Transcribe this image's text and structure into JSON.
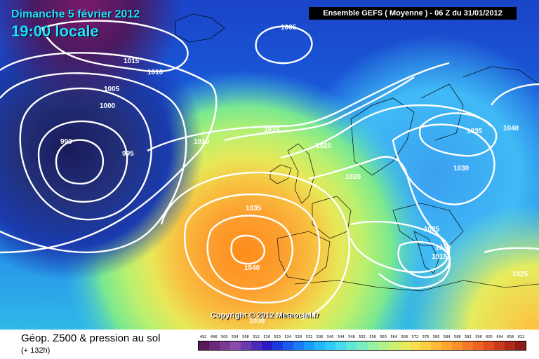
{
  "header": {
    "date": "Dimanche 5 février 2012",
    "time": "19:00 locale",
    "run": "Ensemble GEFS ( Moyenne )  -  06 Z du 31/01/2012"
  },
  "copyright": "Copyright © 2012 Meteociel.fr",
  "footer": {
    "title": "Géop. Z500 & pression au sol",
    "subtitle": "(+ 132h)"
  },
  "isobar_labels": [
    "1005",
    "1015",
    "1010",
    "1005",
    "1000",
    "990",
    "995",
    "1010",
    "1015",
    "1020",
    "1025",
    "1035",
    "1040",
    "1030",
    "1035",
    "1040",
    "1025",
    "1020",
    "1015",
    "1025",
    "1030"
  ],
  "scale": {
    "labels": [
      "492",
      "496",
      "500",
      "504",
      "508",
      "512",
      "516",
      "520",
      "524",
      "528",
      "532",
      "536",
      "540",
      "544",
      "548",
      "552",
      "556",
      "560",
      "564",
      "568",
      "572",
      "576",
      "580",
      "584",
      "588",
      "592",
      "596",
      "600",
      "604",
      "608",
      "612"
    ],
    "colors": [
      "#5a1a5a",
      "#6a2a78",
      "#7a3a92",
      "#8a4aac",
      "#6a3ab0",
      "#4a2ab8",
      "#2a1ac8",
      "#1a3adc",
      "#1a5aee",
      "#1a7afa",
      "#1a9afa",
      "#20b6fa",
      "#30caf8",
      "#46daee",
      "#5ee6d8",
      "#7aeec0",
      "#96f2a4",
      "#b2f28a",
      "#cef072",
      "#e6ec5e",
      "#f6e04e",
      "#fcce42",
      "#fcba38",
      "#fca630",
      "#f8902a",
      "#f47a26",
      "#ee6222",
      "#e04e20",
      "#cc3a1e",
      "#b02a1c",
      "#901c1a"
    ]
  }
}
